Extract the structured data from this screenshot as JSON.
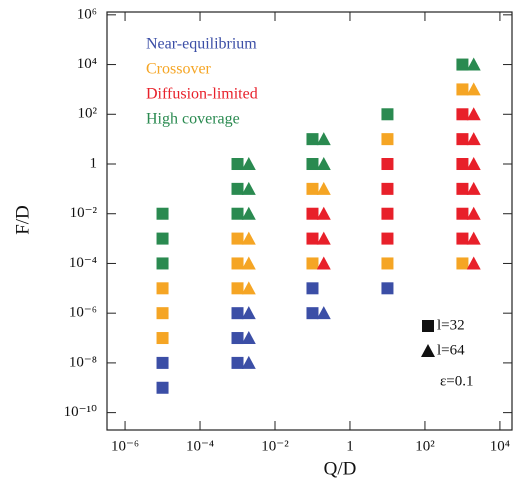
{
  "chart_data": {
    "type": "scatter",
    "x_label": "Q/D",
    "y_label": "F/D",
    "xscale": "log",
    "yscale": "log",
    "xlim": [
      3.3e-07,
      21000.0
    ],
    "ylim": [
      2e-11,
      1300000.0
    ],
    "xticks": [
      {
        "value": 1e-06,
        "label": "10⁻⁶"
      },
      {
        "value": 0.0001,
        "label": "10⁻⁴"
      },
      {
        "value": 0.01,
        "label": "10⁻²"
      },
      1,
      {
        "value": 100,
        "label": "10²"
      },
      {
        "value": 10000.0,
        "label": "10⁴"
      }
    ],
    "yticks": [
      {
        "value": 1000000.0,
        "label": "10⁶"
      },
      {
        "value": 10000.0,
        "label": "10⁴"
      },
      {
        "value": 100,
        "label": "10²"
      },
      1,
      {
        "value": 0.01,
        "label": "10⁻²"
      },
      {
        "value": 0.0001,
        "label": "10⁻⁴"
      },
      {
        "value": 1e-06,
        "label": "10⁻⁶"
      },
      {
        "value": 1e-08,
        "label": "10⁻⁸"
      },
      {
        "value": 1e-10,
        "label": "10⁻¹⁰"
      }
    ],
    "series": [
      {
        "name": "Near-equilibrium",
        "color": "#3b4ea6",
        "x": [
          1e-05,
          1e-05,
          0.001,
          0.001,
          0.001,
          0.1,
          0.1,
          10,
          0.002,
          0.002,
          0.002,
          0.2
        ],
        "values": [
          1e-09,
          1e-08,
          1e-08,
          1e-07,
          1e-06,
          1e-06,
          1e-05,
          1e-05,
          1e-08,
          1e-07,
          1e-06,
          1e-06
        ],
        "marker": [
          "square",
          "square",
          "square",
          "square",
          "square",
          "square",
          "square",
          "square",
          "triangle",
          "triangle",
          "triangle",
          "triangle"
        ]
      },
      {
        "name": "Crossover",
        "color": "#f5a524",
        "x": [
          1e-05,
          1e-05,
          1e-05,
          0.001,
          0.001,
          0.001,
          0.1,
          0.1,
          10,
          10,
          1000,
          1000,
          0.002,
          0.002,
          0.002,
          0.2,
          2000
        ],
        "values": [
          1e-07,
          1e-06,
          1e-05,
          1e-05,
          0.0001,
          0.001,
          0.0001,
          0.1,
          0.0001,
          10,
          0.0001,
          1000,
          1e-05,
          0.0001,
          0.001,
          0.1,
          1000
        ],
        "marker": [
          "square",
          "square",
          "square",
          "square",
          "square",
          "square",
          "square",
          "square",
          "square",
          "square",
          "square",
          "square",
          "triangle",
          "triangle",
          "triangle",
          "triangle",
          "triangle"
        ]
      },
      {
        "name": "Diffusion-limited",
        "color": "#e8202a",
        "x": [
          0.1,
          0.1,
          10,
          10,
          10,
          10,
          1000,
          1000,
          1000,
          1000,
          1000,
          1000,
          0.2,
          0.2,
          0.2,
          2000,
          2000,
          2000,
          2000,
          2000,
          2000,
          2000
        ],
        "values": [
          0.001,
          0.01,
          0.001,
          0.01,
          0.1,
          1,
          0.001,
          0.01,
          0.1,
          1,
          10,
          100,
          0.0001,
          0.001,
          0.01,
          0.0001,
          0.001,
          0.01,
          0.1,
          1,
          10,
          100
        ],
        "marker": [
          "square",
          "square",
          "square",
          "square",
          "square",
          "square",
          "square",
          "square",
          "square",
          "square",
          "square",
          "square",
          "triangle",
          "triangle",
          "triangle",
          "triangle",
          "triangle",
          "triangle",
          "triangle",
          "triangle",
          "triangle",
          "triangle"
        ]
      },
      {
        "name": "High coverage",
        "color": "#2a8a50",
        "x": [
          1e-05,
          1e-05,
          1e-05,
          0.001,
          0.001,
          0.001,
          0.1,
          0.1,
          10,
          1000,
          0.002,
          0.002,
          0.002,
          0.2,
          0.2,
          2000
        ],
        "values": [
          0.0001,
          0.001,
          0.01,
          0.01,
          0.1,
          1,
          1,
          10,
          100,
          10000.0,
          0.01,
          0.1,
          1,
          1,
          10,
          10000.0
        ],
        "marker": [
          "square",
          "square",
          "square",
          "square",
          "square",
          "square",
          "square",
          "square",
          "square",
          "square",
          "triangle",
          "triangle",
          "triangle",
          "triangle",
          "triangle",
          "triangle"
        ]
      }
    ],
    "marker_legend": [
      {
        "marker": "square",
        "label": "l=32"
      },
      {
        "marker": "triangle",
        "label": "l=64"
      }
    ],
    "annotation": "ε=0.1"
  }
}
